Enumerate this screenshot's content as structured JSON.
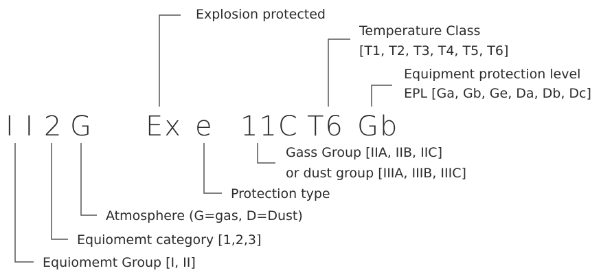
{
  "code": [
    "I I",
    "2",
    "G",
    "Ex",
    "e",
    "11C",
    "T6",
    "Gb"
  ],
  "annotations": [
    {
      "lines": [
        "Explosion protected"
      ]
    },
    {
      "lines": [
        "Temperature Class",
        "[T1, T2, T3, T4, T5, T6]"
      ]
    },
    {
      "lines": [
        "Equipment protection level",
        "EPL [Ga, Gb, Ge, Da, Db, Dc]"
      ]
    },
    {
      "lines": [
        "Gass Group [IIA, IIB, IIC]",
        "or dust group [IIIA, IIIB, IIIC]"
      ]
    },
    {
      "lines": [
        "Protection type"
      ]
    },
    {
      "lines": [
        "Atmosphere (G=gas, D=Dust)"
      ]
    },
    {
      "lines": [
        "Equiomemt category [1,2,3]"
      ]
    },
    {
      "lines": [
        "Equiomemt Group [I, II]"
      ]
    }
  ]
}
